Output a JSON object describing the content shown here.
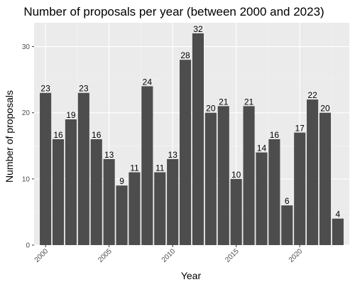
{
  "chart_data": {
    "type": "bar",
    "title": "Number of proposals per year (between 2000 and 2023)",
    "xlabel": "Year",
    "ylabel": "Number of proposals",
    "x": [
      2000,
      2001,
      2002,
      2003,
      2004,
      2005,
      2006,
      2007,
      2008,
      2009,
      2010,
      2011,
      2012,
      2013,
      2014,
      2015,
      2016,
      2017,
      2018,
      2019,
      2020,
      2021,
      2022,
      2023
    ],
    "values": [
      23,
      16,
      19,
      23,
      16,
      13,
      9,
      11,
      24,
      11,
      13,
      28,
      32,
      20,
      21,
      10,
      21,
      14,
      16,
      6,
      17,
      22,
      20,
      4
    ],
    "xticks": [
      "2000",
      "2005",
      "2010",
      "2015",
      "2020"
    ],
    "yticks": [
      "0",
      "10",
      "20",
      "30"
    ],
    "ylim": [
      0,
      33.6
    ],
    "xlim": [
      1999.1,
      2023.9
    ],
    "grid": true,
    "colors": {
      "bar": "#4d4d4d",
      "panel": "#ebebeb",
      "grid_major": "#ffffff",
      "grid_minor": "#f5f5f5",
      "tick_text": "#4d4d4d"
    }
  }
}
